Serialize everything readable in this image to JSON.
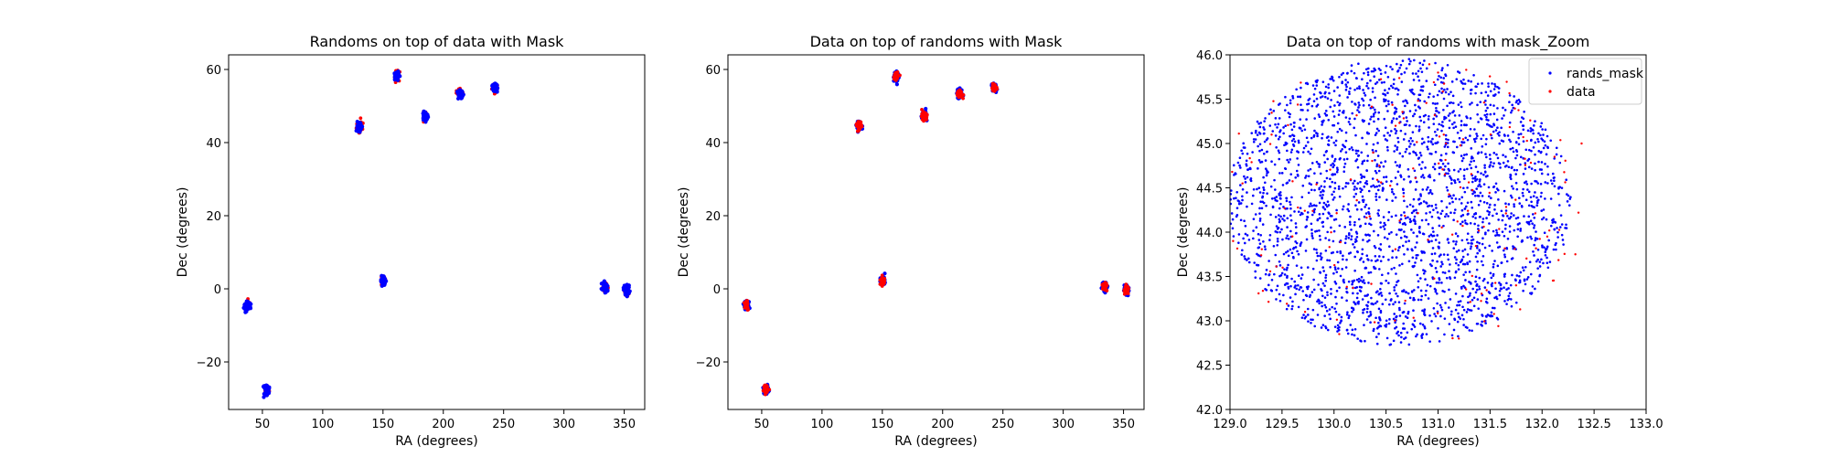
{
  "colors": {
    "randoms": "#0000ff",
    "data": "#ff0000",
    "axes": "#000000",
    "background": "#ffffff",
    "legend_border": "#cccccc"
  },
  "chart_data": [
    {
      "type": "scatter",
      "title": "Randoms on top of data with Mask",
      "xlabel": "RA (degrees)",
      "ylabel": "Dec (degrees)",
      "xlim": [
        22,
        367
      ],
      "ylim": [
        -33,
        64
      ],
      "xticks": [
        50,
        100,
        150,
        200,
        250,
        300,
        350
      ],
      "xtick_labels": [
        "50",
        "100",
        "150",
        "200",
        "250",
        "300",
        "350"
      ],
      "yticks": [
        -20,
        0,
        20,
        40,
        60
      ],
      "ytick_labels": [
        "−20",
        "0",
        "20",
        "40",
        "60"
      ],
      "legend": false,
      "grid": false,
      "draw_order": [
        "data",
        "randoms"
      ],
      "series": [
        {
          "role": "randoms",
          "color": "#0000ff",
          "points": [
            [
              37.5,
              -4.5
            ],
            [
              53.5,
              -27.7
            ],
            [
              130.5,
              44.5
            ],
            [
              150.1,
              2.2
            ],
            [
              161.5,
              58.0
            ],
            [
              185.0,
              47.2
            ],
            [
              213.8,
              53.3
            ],
            [
              242.8,
              55.0
            ],
            [
              334.5,
              0.5
            ],
            [
              352.1,
              -0.5
            ]
          ]
        },
        {
          "role": "data",
          "color": "#ff0000",
          "points": [
            [
              37.5,
              -4.5
            ],
            [
              53.5,
              -27.7
            ],
            [
              130.5,
              44.5
            ],
            [
              150.1,
              2.2
            ],
            [
              161.5,
              58.0
            ],
            [
              185.0,
              47.2
            ],
            [
              213.8,
              53.3
            ],
            [
              242.8,
              55.0
            ],
            [
              334.5,
              0.5
            ],
            [
              352.1,
              -0.5
            ]
          ]
        }
      ]
    },
    {
      "type": "scatter",
      "title": "Data on top of randoms with Mask",
      "xlabel": "RA (degrees)",
      "ylabel": "Dec (degrees)",
      "xlim": [
        22,
        367
      ],
      "ylim": [
        -33,
        64
      ],
      "xticks": [
        50,
        100,
        150,
        200,
        250,
        300,
        350
      ],
      "xtick_labels": [
        "50",
        "100",
        "150",
        "200",
        "250",
        "300",
        "350"
      ],
      "yticks": [
        -20,
        0,
        20,
        40,
        60
      ],
      "ytick_labels": [
        "−20",
        "0",
        "20",
        "40",
        "60"
      ],
      "legend": false,
      "grid": false,
      "draw_order": [
        "randoms",
        "data"
      ],
      "series": [
        {
          "role": "randoms",
          "color": "#0000ff",
          "points": [
            [
              37.5,
              -4.5
            ],
            [
              53.5,
              -27.7
            ],
            [
              130.5,
              44.5
            ],
            [
              150.1,
              2.2
            ],
            [
              161.5,
              58.0
            ],
            [
              185.0,
              47.2
            ],
            [
              213.8,
              53.3
            ],
            [
              242.8,
              55.0
            ],
            [
              334.5,
              0.5
            ],
            [
              352.1,
              -0.5
            ]
          ]
        },
        {
          "role": "data",
          "color": "#ff0000",
          "points": [
            [
              37.5,
              -4.5
            ],
            [
              53.5,
              -27.7
            ],
            [
              130.5,
              44.5
            ],
            [
              150.1,
              2.2
            ],
            [
              161.5,
              58.0
            ],
            [
              185.0,
              47.2
            ],
            [
              213.8,
              53.3
            ],
            [
              242.8,
              55.0
            ],
            [
              334.5,
              0.5
            ],
            [
              352.1,
              -0.5
            ]
          ]
        }
      ]
    },
    {
      "type": "scatter",
      "title": "Data on top of randoms with mask_Zoom",
      "xlabel": "RA (degrees)",
      "ylabel": "Dec (degrees)",
      "xlim": [
        129.0,
        133.0
      ],
      "ylim": [
        42.0,
        46.0
      ],
      "xticks": [
        129.0,
        129.5,
        130.0,
        130.5,
        131.0,
        131.5,
        132.0,
        132.5,
        133.0
      ],
      "xtick_labels": [
        "129.0",
        "129.5",
        "130.0",
        "130.5",
        "131.0",
        "131.5",
        "132.0",
        "132.5",
        "133.0"
      ],
      "yticks": [
        42.0,
        42.5,
        43.0,
        43.5,
        44.0,
        44.5,
        45.0,
        45.5,
        46.0
      ],
      "ytick_labels": [
        "42.0",
        "42.5",
        "43.0",
        "43.5",
        "44.0",
        "44.5",
        "45.0",
        "45.5",
        "46.0"
      ],
      "legend": true,
      "legend_position": "upper right",
      "grid": false,
      "draw_order": [
        "randoms",
        "data"
      ],
      "series": [
        {
          "role": "randoms",
          "name": "rands_mask",
          "color": "#0000ff",
          "region": {
            "center": [
              130.63,
              44.34
            ],
            "radius_deg": 1.65
          },
          "approx_count": 2600
        },
        {
          "role": "data",
          "name": "data",
          "color": "#ff0000",
          "region": {
            "center": [
              130.63,
              44.34
            ],
            "radius_deg": 1.75
          },
          "approx_count": 150,
          "points": [
            [
              132.38,
              45.0
            ],
            [
              132.35,
              44.22
            ],
            [
              132.32,
              43.75
            ],
            [
              132.12,
              44.85
            ],
            [
              132.05,
              43.95
            ],
            [
              129.12,
              44.55
            ],
            [
              129.03,
              43.9
            ],
            [
              129.4,
              45.1
            ],
            [
              131.0,
              45.8
            ],
            [
              130.05,
              42.85
            ],
            [
              131.2,
              42.8
            ],
            [
              131.75,
              43.4
            ]
          ]
        }
      ]
    }
  ]
}
